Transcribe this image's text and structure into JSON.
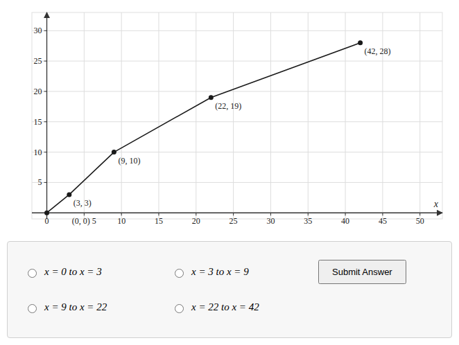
{
  "chart_data": {
    "type": "line",
    "x": [
      0,
      3,
      9,
      22,
      42
    ],
    "values": [
      0,
      3,
      10,
      19,
      28
    ],
    "annotations": [
      null,
      "(3, 3)",
      "(9, 10)",
      "(22, 19)",
      "(42, 28)"
    ],
    "color": "#1a1a1a",
    "marker": "circle",
    "x_label": "x",
    "xlim": [
      -2,
      53
    ],
    "ylim": [
      -1,
      33
    ],
    "xticks": [
      0,
      {
        "value": 5,
        "label": "(0, 0) 5"
      },
      10,
      15,
      20,
      25,
      30,
      35,
      40,
      45,
      50
    ],
    "yticks": [
      5,
      10,
      15,
      20,
      25,
      30
    ],
    "grid": true,
    "options": [
      "x = 0 to x = 3",
      "x = 3 to x = 9",
      "x = 9 to x = 22",
      "x = 22 to x = 42"
    ],
    "button": "Submit Answer"
  }
}
